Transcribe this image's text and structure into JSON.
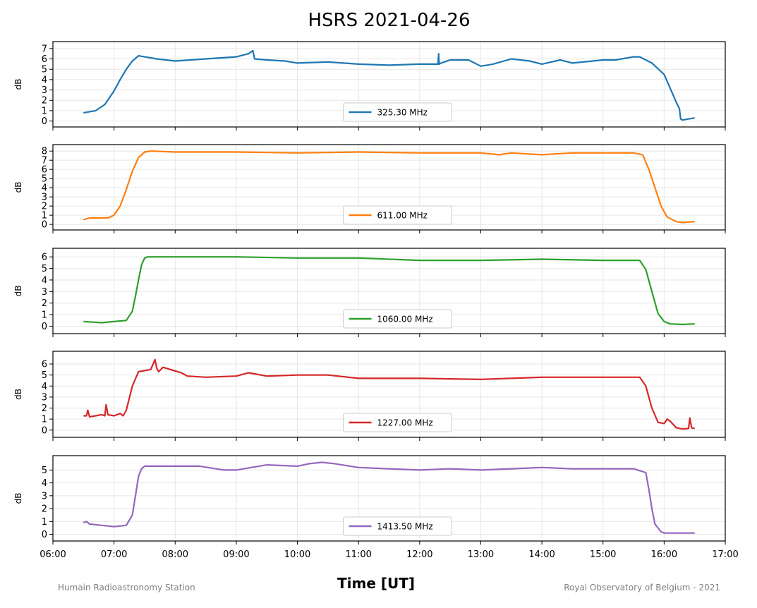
{
  "chart_data": {
    "type": "line",
    "title": "HSRS 2021-04-26",
    "xlabel": "Time [UT]",
    "x_unit": "hours UT",
    "xlim": [
      6,
      17
    ],
    "x_ticks": [
      "06:00",
      "07:00",
      "08:00",
      "09:00",
      "10:00",
      "11:00",
      "12:00",
      "13:00",
      "14:00",
      "15:00",
      "16:00",
      "17:00"
    ],
    "grid": true,
    "legend_position": "lower-center",
    "panels": [
      {
        "name": "325.30 MHz",
        "ylabel": "dB",
        "color": "#1f77b4",
        "ylim": [
          -0.3,
          7.4
        ],
        "yticks": [
          0,
          1,
          2,
          3,
          4,
          5,
          6,
          7
        ],
        "x": [
          6.5,
          6.7,
          6.85,
          7.0,
          7.1,
          7.2,
          7.3,
          7.4,
          7.5,
          7.7,
          8.0,
          8.5,
          9.0,
          9.2,
          9.27,
          9.3,
          9.5,
          9.8,
          10.0,
          10.5,
          11.0,
          11.5,
          12.0,
          12.3,
          12.31,
          12.32,
          12.35,
          12.5,
          12.8,
          13.0,
          13.2,
          13.5,
          13.8,
          14.0,
          14.3,
          14.5,
          15.0,
          15.2,
          15.5,
          15.6,
          15.7,
          15.8,
          16.0,
          16.2,
          16.25,
          16.27,
          16.3,
          16.4,
          16.5
        ],
        "y": [
          0.8,
          1.0,
          1.6,
          2.9,
          4.0,
          5.0,
          5.8,
          6.3,
          6.2,
          6.0,
          5.8,
          6.0,
          6.2,
          6.5,
          6.8,
          6.0,
          5.9,
          5.8,
          5.6,
          5.7,
          5.5,
          5.4,
          5.5,
          5.5,
          6.5,
          5.5,
          5.6,
          5.9,
          5.9,
          5.3,
          5.5,
          6.0,
          5.8,
          5.5,
          5.9,
          5.6,
          5.9,
          5.9,
          6.2,
          6.2,
          5.9,
          5.6,
          4.5,
          1.8,
          1.2,
          0.2,
          0.1,
          0.2,
          0.3
        ]
      },
      {
        "name": "611.00 MHz",
        "ylabel": "dB",
        "color": "#ff7f0e",
        "ylim": [
          -0.3,
          8.4
        ],
        "yticks": [
          0,
          1,
          2,
          3,
          4,
          5,
          6,
          7,
          8
        ],
        "x": [
          6.5,
          6.6,
          6.9,
          7.0,
          7.1,
          7.2,
          7.3,
          7.4,
          7.5,
          7.6,
          8.0,
          9.0,
          10.0,
          11.0,
          12.0,
          13.0,
          13.3,
          13.5,
          14.0,
          14.5,
          15.0,
          15.5,
          15.65,
          15.75,
          15.85,
          15.95,
          16.05,
          16.2,
          16.3,
          16.5
        ],
        "y": [
          0.5,
          0.7,
          0.7,
          1.0,
          2.0,
          3.8,
          5.8,
          7.3,
          7.9,
          8.0,
          7.9,
          7.9,
          7.8,
          7.9,
          7.8,
          7.8,
          7.6,
          7.8,
          7.6,
          7.8,
          7.8,
          7.8,
          7.6,
          6.0,
          4.0,
          2.0,
          0.8,
          0.3,
          0.2,
          0.3
        ]
      },
      {
        "name": "1060.00 MHz",
        "ylabel": "dB",
        "color": "#2ca02c",
        "ylim": [
          -0.4,
          6.5
        ],
        "yticks": [
          0,
          1,
          2,
          3,
          4,
          5,
          6
        ],
        "x": [
          6.5,
          6.8,
          7.0,
          7.2,
          7.3,
          7.35,
          7.4,
          7.45,
          7.5,
          7.55,
          8.0,
          9.0,
          10.0,
          11.0,
          12.0,
          13.0,
          14.0,
          15.0,
          15.6,
          15.7,
          15.8,
          15.9,
          16.0,
          16.1,
          16.3,
          16.5
        ],
        "y": [
          0.4,
          0.3,
          0.4,
          0.5,
          1.3,
          2.6,
          4.0,
          5.3,
          5.9,
          6.0,
          6.0,
          6.0,
          5.9,
          5.9,
          5.7,
          5.7,
          5.8,
          5.7,
          5.7,
          4.9,
          3.0,
          1.1,
          0.4,
          0.2,
          0.15,
          0.2
        ]
      },
      {
        "name": "1227.00 MHz",
        "ylabel": "dB",
        "color": "#d62728",
        "ylim": [
          -0.4,
          6.9
        ],
        "yticks": [
          0,
          1,
          2,
          3,
          4,
          5,
          6
        ],
        "x": [
          6.5,
          6.55,
          6.57,
          6.6,
          6.8,
          6.85,
          6.87,
          6.9,
          7.0,
          7.1,
          7.15,
          7.2,
          7.3,
          7.4,
          7.6,
          7.67,
          7.7,
          7.73,
          7.8,
          8.1,
          8.2,
          8.5,
          9.0,
          9.2,
          9.5,
          10.0,
          10.5,
          11.0,
          12.0,
          13.0,
          14.0,
          15.0,
          15.6,
          15.7,
          15.8,
          15.9,
          16.0,
          16.05,
          16.1,
          16.2,
          16.3,
          16.4,
          16.42,
          16.45,
          16.5
        ],
        "y": [
          1.3,
          1.3,
          1.8,
          1.2,
          1.4,
          1.3,
          2.3,
          1.4,
          1.3,
          1.5,
          1.3,
          1.8,
          4.0,
          5.3,
          5.5,
          6.4,
          5.6,
          5.3,
          5.7,
          5.2,
          4.9,
          4.8,
          4.9,
          5.2,
          4.9,
          5.0,
          5.0,
          4.7,
          4.7,
          4.6,
          4.8,
          4.8,
          4.8,
          4.0,
          2.0,
          0.7,
          0.6,
          1.0,
          0.8,
          0.2,
          0.1,
          0.15,
          1.1,
          0.2,
          0.15
        ]
      },
      {
        "name": "1413.50 MHz",
        "ylabel": "dB",
        "color": "#9467bd",
        "ylim": [
          -0.3,
          5.9
        ],
        "yticks": [
          0,
          1,
          2,
          3,
          4,
          5
        ],
        "x": [
          6.5,
          6.55,
          6.6,
          6.8,
          7.0,
          7.2,
          7.3,
          7.35,
          7.4,
          7.45,
          7.5,
          7.55,
          8.0,
          8.4,
          8.8,
          9.0,
          9.5,
          10.0,
          10.2,
          10.4,
          10.6,
          11.0,
          11.5,
          12.0,
          12.5,
          13.0,
          13.5,
          14.0,
          14.5,
          15.0,
          15.5,
          15.7,
          15.75,
          15.8,
          15.85,
          15.95,
          16.0,
          16.2,
          16.5
        ],
        "y": [
          0.9,
          1.0,
          0.8,
          0.7,
          0.6,
          0.7,
          1.5,
          3.0,
          4.5,
          5.1,
          5.3,
          5.3,
          5.3,
          5.3,
          5.0,
          5.0,
          5.4,
          5.3,
          5.5,
          5.6,
          5.5,
          5.2,
          5.1,
          5.0,
          5.1,
          5.0,
          5.1,
          5.2,
          5.1,
          5.1,
          5.1,
          4.8,
          3.5,
          2.0,
          0.8,
          0.2,
          0.1,
          0.1,
          0.1
        ]
      }
    ]
  },
  "footer": {
    "left": "Humain Radioastronomy Station",
    "right": "Royal Observatory of Belgium - 2021"
  }
}
